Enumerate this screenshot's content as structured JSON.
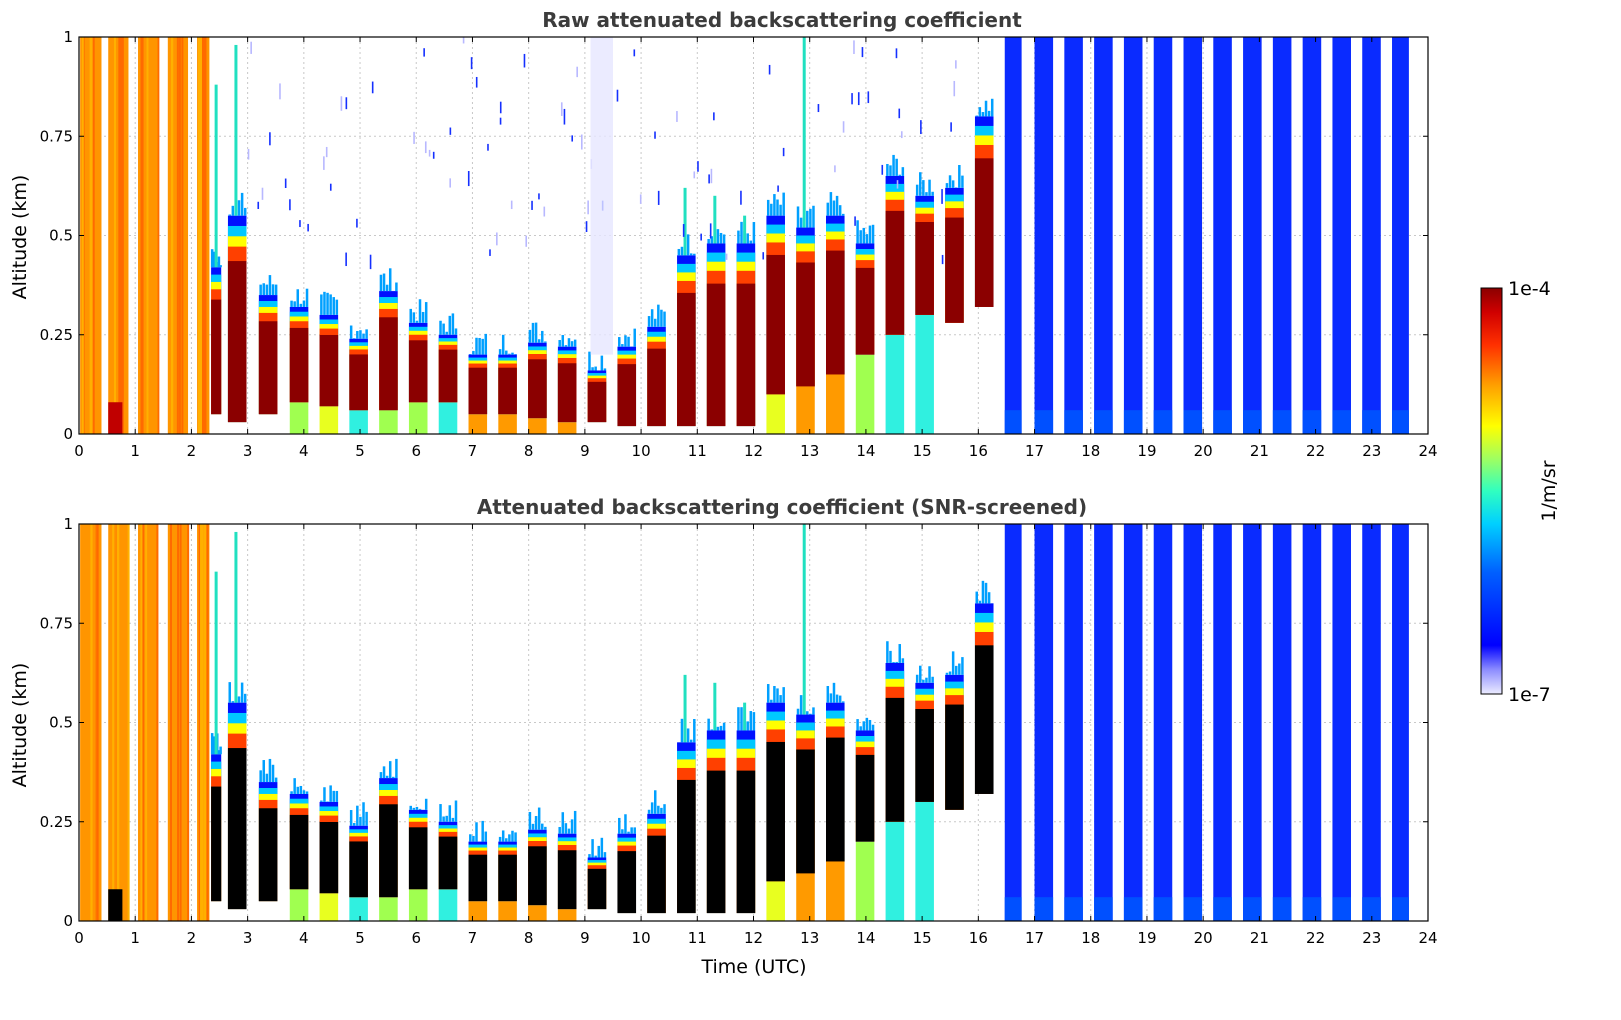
{
  "chart_data": {
    "type": "heatmap",
    "xlabel": "Time (UTC)",
    "ylabel": "Altitude (km)",
    "xlim": [
      0,
      24
    ],
    "ylim": [
      0,
      1
    ],
    "xticks": [
      "0",
      "1",
      "2",
      "3",
      "4",
      "5",
      "6",
      "7",
      "8",
      "9",
      "10",
      "11",
      "12",
      "13",
      "14",
      "15",
      "16",
      "17",
      "18",
      "19",
      "20",
      "21",
      "22",
      "23",
      "24"
    ],
    "yticks": [
      "0",
      "0.25",
      "0.5",
      "0.75",
      "1"
    ],
    "panels": [
      {
        "title": "Raw attenuated backscattering coefficient",
        "screened": false
      },
      {
        "title": "Attenuated backscattering coefficient (SNR-screened)",
        "screened": true
      }
    ],
    "colorbar": {
      "label": "1/m/sr",
      "min_label": "1e-7",
      "max_label": "1e-4",
      "colors": [
        "#ececff",
        "#c8c8ff",
        "#8c8cff",
        "#3c3cff",
        "#0000ff",
        "#0040ff",
        "#0080ff",
        "#00bfff",
        "#00e5e5",
        "#30ffc0",
        "#80ff80",
        "#c0ff40",
        "#ffff00",
        "#ffc000",
        "#ff8000",
        "#ff4000",
        "#ff0000",
        "#d00000",
        "#8b0000"
      ]
    },
    "profiles": [
      {
        "t": 0.02,
        "w": 0.38,
        "band": "surf",
        "h": 1.0,
        "c": "orange"
      },
      {
        "t": 0.52,
        "w": 0.36,
        "band": "surf",
        "h": 1.0,
        "c": "orange",
        "low": 0.08
      },
      {
        "t": 1.05,
        "w": 0.36,
        "band": "surf",
        "h": 1.0,
        "c": "orange"
      },
      {
        "t": 1.58,
        "w": 0.36,
        "band": "surf",
        "h": 1.0,
        "c": "orange"
      },
      {
        "t": 2.1,
        "w": 0.22,
        "band": "surf",
        "h": 1.0,
        "c": "orange"
      },
      {
        "t": 2.35,
        "w": 0.18,
        "base": 0.05,
        "top": 0.42,
        "peak": 0.88
      },
      {
        "t": 2.65,
        "w": 0.33,
        "base": 0.03,
        "top": 0.55,
        "peak": 0.98
      },
      {
        "t": 3.2,
        "w": 0.33,
        "base": 0.05,
        "top": 0.35
      },
      {
        "t": 3.75,
        "w": 0.33,
        "base": 0.08,
        "top": 0.32,
        "below": "lime"
      },
      {
        "t": 4.28,
        "w": 0.33,
        "base": 0.07,
        "top": 0.3,
        "below": "yellow"
      },
      {
        "t": 4.81,
        "w": 0.33,
        "base": 0.06,
        "top": 0.24,
        "below": "cyan"
      },
      {
        "t": 5.34,
        "w": 0.33,
        "base": 0.06,
        "top": 0.36,
        "below": "lime"
      },
      {
        "t": 5.87,
        "w": 0.33,
        "base": 0.08,
        "top": 0.28,
        "below": "lime"
      },
      {
        "t": 6.4,
        "w": 0.33,
        "base": 0.08,
        "top": 0.25,
        "below": "cyan"
      },
      {
        "t": 6.93,
        "w": 0.33,
        "base": 0.05,
        "top": 0.2,
        "below": "orange"
      },
      {
        "t": 7.46,
        "w": 0.33,
        "base": 0.05,
        "top": 0.2,
        "below": "orange"
      },
      {
        "t": 7.99,
        "w": 0.33,
        "base": 0.04,
        "top": 0.23,
        "below": "orange"
      },
      {
        "t": 8.52,
        "w": 0.33,
        "base": 0.03,
        "top": 0.22,
        "below": "orange"
      },
      {
        "t": 9.05,
        "w": 0.33,
        "base": 0.03,
        "top": 0.16
      },
      {
        "t": 9.58,
        "w": 0.33,
        "base": 0.02,
        "top": 0.22
      },
      {
        "t": 10.11,
        "w": 0.33,
        "base": 0.02,
        "top": 0.27
      },
      {
        "t": 10.64,
        "w": 0.33,
        "base": 0.02,
        "top": 0.45,
        "peak": 0.62
      },
      {
        "t": 11.17,
        "w": 0.33,
        "base": 0.02,
        "top": 0.48,
        "peak": 0.6
      },
      {
        "t": 11.7,
        "w": 0.33,
        "base": 0.02,
        "top": 0.48,
        "peak": 0.55
      },
      {
        "t": 12.23,
        "w": 0.33,
        "base": 0.1,
        "top": 0.55,
        "below": "yellow"
      },
      {
        "t": 12.76,
        "w": 0.33,
        "base": 0.12,
        "top": 0.52,
        "peak": 1.0,
        "below": "orange"
      },
      {
        "t": 13.29,
        "w": 0.33,
        "base": 0.15,
        "top": 0.55,
        "below": "orange"
      },
      {
        "t": 13.82,
        "w": 0.33,
        "base": 0.2,
        "top": 0.48,
        "below": "lime"
      },
      {
        "t": 14.35,
        "w": 0.33,
        "base": 0.25,
        "top": 0.65,
        "below": "cyan"
      },
      {
        "t": 14.88,
        "w": 0.33,
        "base": 0.3,
        "top": 0.6,
        "band": "tall",
        "below": "cyan"
      },
      {
        "t": 15.41,
        "w": 0.33,
        "base": 0.28,
        "top": 0.62
      },
      {
        "t": 15.94,
        "w": 0.33,
        "base": 0.32,
        "top": 0.8,
        "cloud": "dark"
      },
      {
        "t": 16.47,
        "w": 0.3,
        "band": "blue"
      },
      {
        "t": 17.0,
        "w": 0.33,
        "band": "blue"
      },
      {
        "t": 17.53,
        "w": 0.33,
        "band": "blue"
      },
      {
        "t": 18.06,
        "w": 0.33,
        "band": "blue"
      },
      {
        "t": 18.59,
        "w": 0.33,
        "band": "blue"
      },
      {
        "t": 19.12,
        "w": 0.33,
        "band": "blue"
      },
      {
        "t": 19.65,
        "w": 0.33,
        "band": "blue"
      },
      {
        "t": 20.18,
        "w": 0.33,
        "band": "blue"
      },
      {
        "t": 20.71,
        "w": 0.33,
        "band": "blue"
      },
      {
        "t": 21.24,
        "w": 0.33,
        "band": "blue"
      },
      {
        "t": 21.77,
        "w": 0.33,
        "band": "blue"
      },
      {
        "t": 22.3,
        "w": 0.33,
        "band": "blue"
      },
      {
        "t": 22.83,
        "w": 0.33,
        "band": "blue"
      },
      {
        "t": 23.36,
        "w": 0.3,
        "band": "blue"
      }
    ]
  }
}
